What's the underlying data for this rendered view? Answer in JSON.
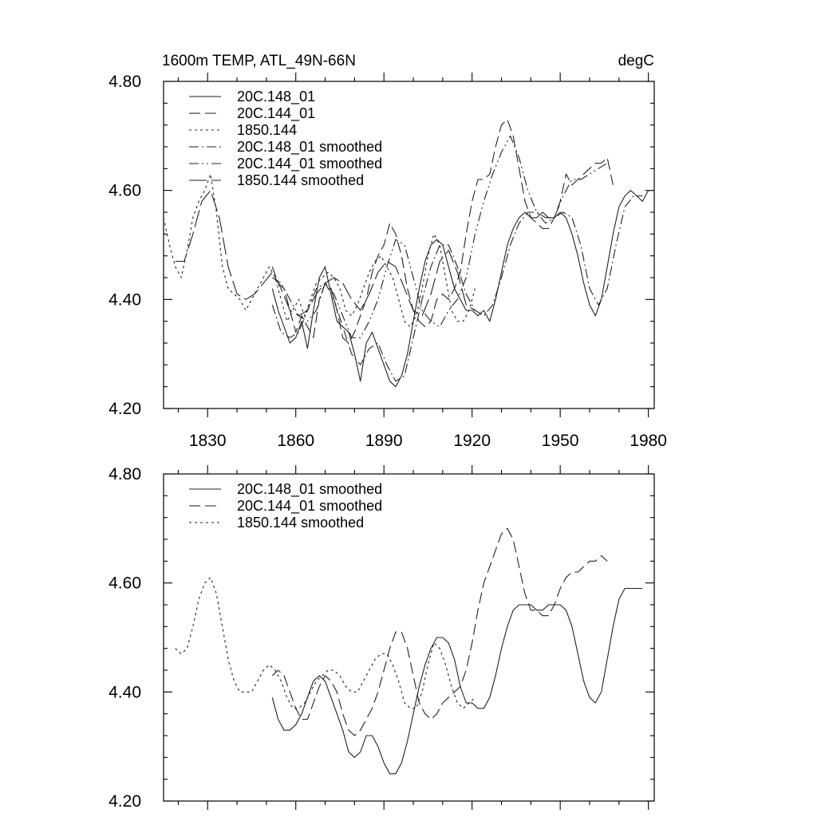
{
  "figure": {
    "title_left": "1600m TEMP, ATL_49N-66N",
    "title_right": "degC"
  },
  "chart_data": [
    {
      "type": "line",
      "panel": "top",
      "title": "1600m TEMP, ATL_49N-66N",
      "units": "degC",
      "xlim": [
        1815,
        1982
      ],
      "ylim": [
        4.2,
        4.8
      ],
      "xticks": [
        1830,
        1860,
        1890,
        1920,
        1950,
        1980
      ],
      "xtick_labels": [
        "1830",
        "1860",
        "1890",
        "1920",
        "1950",
        "1980"
      ],
      "yticks": [
        4.2,
        4.4,
        4.6,
        4.8
      ],
      "ytick_labels": [
        "4.20",
        "4.40",
        "4.60",
        "4.80"
      ],
      "legend": [
        "20C.148_01",
        "20C.144_01",
        "1850.144",
        "20C.148_01 smoothed",
        "20C.144_01 smoothed",
        "1850.144 smoothed"
      ],
      "series": [
        {
          "name": "20C.148_01",
          "style": "solid",
          "x": [
            1852,
            1854,
            1856,
            1858,
            1860,
            1862,
            1864,
            1866,
            1868,
            1870,
            1872,
            1874,
            1876,
            1878,
            1880,
            1882,
            1884,
            1886,
            1888,
            1890,
            1892,
            1894,
            1896,
            1898,
            1900,
            1902,
            1904,
            1906,
            1908,
            1910,
            1912,
            1914,
            1916,
            1918,
            1920,
            1922,
            1924,
            1926,
            1928,
            1930,
            1932,
            1934,
            1936,
            1938,
            1940,
            1942,
            1944,
            1946,
            1948,
            1950,
            1952,
            1954,
            1956,
            1958,
            1960,
            1962,
            1964,
            1966,
            1968,
            1970,
            1972,
            1974,
            1976,
            1978,
            1980,
            1982
          ],
          "y": [
            4.42,
            4.38,
            4.35,
            4.32,
            4.33,
            4.36,
            4.31,
            4.38,
            4.44,
            4.46,
            4.41,
            4.36,
            4.35,
            4.34,
            4.3,
            4.25,
            4.32,
            4.34,
            4.31,
            4.28,
            4.25,
            4.24,
            4.26,
            4.3,
            4.36,
            4.42,
            4.47,
            4.5,
            4.51,
            4.5,
            4.46,
            4.42,
            4.4,
            4.38,
            4.38,
            4.37,
            4.38,
            4.36,
            4.4,
            4.45,
            4.5,
            4.53,
            4.55,
            4.56,
            4.55,
            4.55,
            4.56,
            4.55,
            4.55,
            4.56,
            4.55,
            4.52,
            4.48,
            4.43,
            4.39,
            4.37,
            4.4,
            4.46,
            4.52,
            4.57,
            4.59,
            4.6,
            4.59,
            4.58,
            4.6,
            4.6
          ]
        },
        {
          "name": "20C.144_01",
          "style": "dashed",
          "x": [
            1852,
            1854,
            1856,
            1858,
            1860,
            1862,
            1864,
            1866,
            1868,
            1870,
            1872,
            1874,
            1876,
            1878,
            1880,
            1882,
            1884,
            1886,
            1888,
            1890,
            1892,
            1894,
            1896,
            1898,
            1900,
            1902,
            1904,
            1906,
            1908,
            1910,
            1912,
            1914,
            1916,
            1918,
            1920,
            1922,
            1924,
            1926,
            1928,
            1930,
            1932,
            1934,
            1936,
            1938,
            1940,
            1942,
            1944,
            1946,
            1948,
            1950,
            1952,
            1954,
            1956,
            1958,
            1960,
            1962,
            1964,
            1966,
            1968
          ],
          "y": [
            4.46,
            4.43,
            4.42,
            4.38,
            4.34,
            4.37,
            4.35,
            4.33,
            4.4,
            4.43,
            4.42,
            4.38,
            4.33,
            4.32,
            4.34,
            4.37,
            4.4,
            4.45,
            4.48,
            4.5,
            4.54,
            4.52,
            4.48,
            4.42,
            4.38,
            4.36,
            4.35,
            4.36,
            4.4,
            4.41,
            4.4,
            4.42,
            4.45,
            4.52,
            4.58,
            4.62,
            4.62,
            4.63,
            4.68,
            4.72,
            4.73,
            4.7,
            4.64,
            4.58,
            4.55,
            4.54,
            4.53,
            4.53,
            4.55,
            4.58,
            4.63,
            4.61,
            4.62,
            4.63,
            4.64,
            4.65,
            4.65,
            4.66,
            4.61
          ]
        },
        {
          "name": "1850.144",
          "style": "dotted",
          "x": [
            1815,
            1817,
            1819,
            1821,
            1823,
            1825,
            1827,
            1829,
            1831,
            1833,
            1835,
            1837,
            1839,
            1841,
            1843,
            1845,
            1847,
            1849,
            1851,
            1853,
            1855,
            1857,
            1859,
            1861,
            1863,
            1865,
            1867,
            1869,
            1871,
            1873,
            1875,
            1877,
            1879,
            1881,
            1883,
            1885,
            1887,
            1889,
            1891,
            1893,
            1895,
            1897,
            1899,
            1901,
            1903,
            1905,
            1907,
            1909,
            1911,
            1913,
            1915,
            1917,
            1919,
            1921
          ],
          "y": [
            4.55,
            4.5,
            4.46,
            4.44,
            4.49,
            4.55,
            4.58,
            4.6,
            4.63,
            4.56,
            4.46,
            4.42,
            4.41,
            4.4,
            4.38,
            4.4,
            4.42,
            4.44,
            4.46,
            4.44,
            4.4,
            4.36,
            4.38,
            4.4,
            4.37,
            4.4,
            4.43,
            4.44,
            4.45,
            4.44,
            4.42,
            4.38,
            4.37,
            4.39,
            4.42,
            4.45,
            4.47,
            4.48,
            4.46,
            4.44,
            4.4,
            4.36,
            4.35,
            4.37,
            4.42,
            4.48,
            4.52,
            4.5,
            4.44,
            4.38,
            4.36,
            4.36,
            4.38,
            4.42
          ]
        },
        {
          "name": "20C.148_01 smoothed",
          "style": "dashdot",
          "x": [
            1852,
            1855,
            1858,
            1861,
            1864,
            1867,
            1870,
            1873,
            1876,
            1879,
            1882,
            1885,
            1888,
            1891,
            1894,
            1897,
            1900,
            1903,
            1906,
            1909,
            1912,
            1915,
            1918,
            1921,
            1924,
            1927,
            1930,
            1933,
            1936,
            1939,
            1942,
            1945,
            1948,
            1951,
            1954,
            1957,
            1960,
            1963,
            1966,
            1969,
            1972,
            1975,
            1978
          ],
          "y": [
            4.39,
            4.34,
            4.33,
            4.34,
            4.38,
            4.42,
            4.43,
            4.4,
            4.35,
            4.3,
            4.28,
            4.31,
            4.32,
            4.28,
            4.25,
            4.26,
            4.33,
            4.4,
            4.46,
            4.5,
            4.5,
            4.46,
            4.41,
            4.38,
            4.37,
            4.39,
            4.44,
            4.5,
            4.54,
            4.56,
            4.56,
            4.55,
            4.55,
            4.56,
            4.55,
            4.5,
            4.42,
            4.39,
            4.42,
            4.5,
            4.57,
            4.59,
            4.59
          ]
        },
        {
          "name": "20C.144_01 smoothed",
          "style": "dashdotdot",
          "x": [
            1852,
            1855,
            1858,
            1861,
            1864,
            1867,
            1870,
            1873,
            1876,
            1879,
            1882,
            1885,
            1888,
            1891,
            1894,
            1897,
            1900,
            1903,
            1906,
            1909,
            1912,
            1915,
            1918,
            1921,
            1924,
            1927,
            1930,
            1933,
            1936,
            1939,
            1942,
            1945,
            1948,
            1951,
            1954,
            1957,
            1960,
            1963,
            1966
          ],
          "y": [
            4.44,
            4.43,
            4.4,
            4.37,
            4.36,
            4.38,
            4.43,
            4.41,
            4.37,
            4.33,
            4.33,
            4.36,
            4.4,
            4.46,
            4.51,
            4.5,
            4.44,
            4.38,
            4.36,
            4.35,
            4.38,
            4.4,
            4.44,
            4.52,
            4.58,
            4.63,
            4.67,
            4.7,
            4.66,
            4.6,
            4.56,
            4.54,
            4.55,
            4.59,
            4.62,
            4.62,
            4.63,
            4.64,
            4.65
          ]
        },
        {
          "name": "1850.144 smoothed",
          "style": "longdash",
          "x": [
            1819,
            1822,
            1825,
            1828,
            1831,
            1834,
            1837,
            1840,
            1843,
            1846,
            1849,
            1852,
            1855,
            1858,
            1861,
            1864,
            1867,
            1870,
            1873,
            1876,
            1879,
            1882,
            1885,
            1888,
            1891,
            1894,
            1897,
            1900,
            1903,
            1906,
            1909,
            1912,
            1915,
            1918,
            1921
          ],
          "y": [
            4.47,
            4.47,
            4.52,
            4.58,
            4.6,
            4.55,
            4.46,
            4.41,
            4.4,
            4.41,
            4.43,
            4.45,
            4.42,
            4.38,
            4.37,
            4.38,
            4.41,
            4.43,
            4.44,
            4.43,
            4.4,
            4.38,
            4.41,
            4.45,
            4.47,
            4.46,
            4.42,
            4.38,
            4.37,
            4.41,
            4.47,
            4.49,
            4.45,
            4.39,
            4.38
          ]
        }
      ]
    },
    {
      "type": "line",
      "panel": "bottom",
      "xlim": [
        1815,
        1982
      ],
      "ylim": [
        4.2,
        4.8
      ],
      "xticks": [
        1830,
        1860,
        1890,
        1920,
        1950,
        1980
      ],
      "yticks": [
        4.2,
        4.4,
        4.6,
        4.8
      ],
      "ytick_labels": [
        "4.20",
        "4.40",
        "4.60",
        "4.80"
      ],
      "legend": [
        "20C.148_01 smoothed",
        "20C.144_01 smoothed",
        "1850.144 smoothed"
      ],
      "series": [
        {
          "name": "20C.148_01 smoothed",
          "style": "solid",
          "x": [
            1852,
            1854,
            1856,
            1858,
            1860,
            1862,
            1864,
            1866,
            1868,
            1870,
            1872,
            1874,
            1876,
            1878,
            1880,
            1882,
            1884,
            1886,
            1888,
            1890,
            1892,
            1894,
            1896,
            1898,
            1900,
            1902,
            1904,
            1906,
            1908,
            1910,
            1912,
            1914,
            1916,
            1918,
            1920,
            1922,
            1924,
            1926,
            1928,
            1930,
            1932,
            1934,
            1936,
            1938,
            1940,
            1942,
            1944,
            1946,
            1948,
            1950,
            1952,
            1954,
            1956,
            1958,
            1960,
            1962,
            1964,
            1966,
            1968,
            1970,
            1972,
            1974,
            1976,
            1978
          ],
          "y": [
            4.39,
            4.35,
            4.33,
            4.33,
            4.34,
            4.36,
            4.39,
            4.42,
            4.43,
            4.42,
            4.39,
            4.36,
            4.33,
            4.29,
            4.28,
            4.29,
            4.32,
            4.32,
            4.3,
            4.27,
            4.25,
            4.25,
            4.27,
            4.31,
            4.36,
            4.41,
            4.45,
            4.48,
            4.5,
            4.5,
            4.49,
            4.46,
            4.41,
            4.38,
            4.38,
            4.37,
            4.37,
            4.39,
            4.43,
            4.48,
            4.52,
            4.55,
            4.56,
            4.56,
            4.56,
            4.55,
            4.55,
            4.56,
            4.56,
            4.56,
            4.55,
            4.52,
            4.47,
            4.42,
            4.39,
            4.38,
            4.4,
            4.46,
            4.52,
            4.57,
            4.59,
            4.59,
            4.59,
            4.59
          ]
        },
        {
          "name": "20C.144_01 smoothed",
          "style": "dashed",
          "x": [
            1852,
            1854,
            1856,
            1858,
            1860,
            1862,
            1864,
            1866,
            1868,
            1870,
            1872,
            1874,
            1876,
            1878,
            1880,
            1882,
            1884,
            1886,
            1888,
            1890,
            1892,
            1894,
            1896,
            1898,
            1900,
            1902,
            1904,
            1906,
            1908,
            1910,
            1912,
            1914,
            1916,
            1918,
            1920,
            1922,
            1924,
            1926,
            1928,
            1930,
            1932,
            1934,
            1936,
            1938,
            1940,
            1942,
            1944,
            1946,
            1948,
            1950,
            1952,
            1954,
            1956,
            1958,
            1960,
            1962,
            1964,
            1966
          ],
          "y": [
            4.43,
            4.44,
            4.43,
            4.4,
            4.37,
            4.35,
            4.35,
            4.38,
            4.41,
            4.43,
            4.42,
            4.4,
            4.36,
            4.33,
            4.32,
            4.33,
            4.35,
            4.37,
            4.4,
            4.44,
            4.48,
            4.51,
            4.51,
            4.48,
            4.43,
            4.38,
            4.36,
            4.35,
            4.36,
            4.38,
            4.39,
            4.4,
            4.41,
            4.44,
            4.49,
            4.55,
            4.6,
            4.63,
            4.66,
            4.69,
            4.7,
            4.68,
            4.63,
            4.58,
            4.55,
            4.55,
            4.54,
            4.54,
            4.56,
            4.59,
            4.61,
            4.62,
            4.62,
            4.63,
            4.64,
            4.64,
            4.65,
            4.64
          ]
        },
        {
          "name": "1850.144 smoothed",
          "style": "dotted",
          "x": [
            1819,
            1821,
            1823,
            1825,
            1827,
            1829,
            1831,
            1833,
            1835,
            1837,
            1839,
            1841,
            1843,
            1845,
            1847,
            1849,
            1851,
            1853,
            1855,
            1857,
            1859,
            1861,
            1863,
            1865,
            1867,
            1869,
            1871,
            1873,
            1875,
            1877,
            1879,
            1881,
            1883,
            1885,
            1887,
            1889,
            1891,
            1893,
            1895,
            1897,
            1899,
            1901,
            1903,
            1905,
            1907,
            1909,
            1911,
            1913,
            1915,
            1917,
            1919,
            1921
          ],
          "y": [
            4.48,
            4.47,
            4.48,
            4.52,
            4.57,
            4.6,
            4.61,
            4.58,
            4.52,
            4.46,
            4.42,
            4.4,
            4.4,
            4.4,
            4.42,
            4.44,
            4.45,
            4.44,
            4.42,
            4.39,
            4.37,
            4.37,
            4.38,
            4.4,
            4.42,
            4.43,
            4.44,
            4.44,
            4.43,
            4.41,
            4.4,
            4.4,
            4.42,
            4.44,
            4.46,
            4.47,
            4.47,
            4.45,
            4.42,
            4.38,
            4.37,
            4.37,
            4.4,
            4.45,
            4.49,
            4.48,
            4.45,
            4.41,
            4.38,
            4.37,
            4.38,
            4.39
          ]
        }
      ]
    }
  ]
}
